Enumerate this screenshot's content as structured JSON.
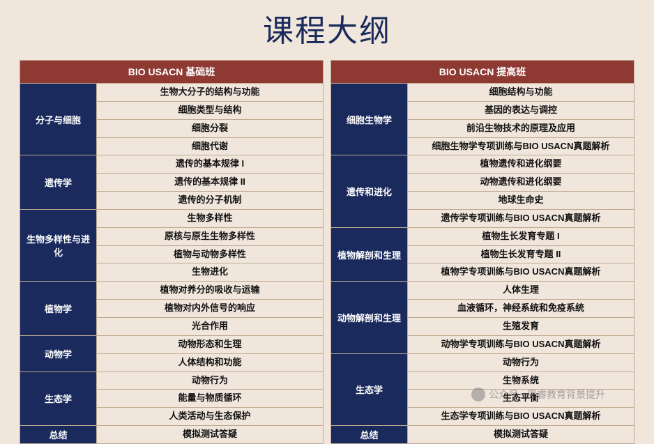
{
  "colors": {
    "page_bg": "#f0e6dc",
    "title_color": "#1a2a5c",
    "header_bg": "#8e3a33",
    "header_fg": "#ffffff",
    "category_bg": "#1a2a5c",
    "category_fg": "#ffffff",
    "cell_fg": "#111111",
    "border": "#bfa98f"
  },
  "title": "课程大纲",
  "left": {
    "header": "BIO USACN 基础班",
    "sections": [
      {
        "category": "分子与细胞",
        "topics": [
          "生物大分子的结构与功能",
          "细胞类型与结构",
          "细胞分裂",
          "细胞代谢"
        ]
      },
      {
        "category": "遗传学",
        "topics": [
          "遗传的基本规律 I",
          "遗传的基本规律 II",
          "遗传的分子机制"
        ]
      },
      {
        "category": "生物多样性与进化",
        "topics": [
          "生物多样性",
          "原核与原生生物多样性",
          "植物与动物多样性",
          "生物进化"
        ]
      },
      {
        "category": "植物学",
        "topics": [
          "植物对养分的吸收与运输",
          "植物对内外信号的响应",
          "光合作用"
        ]
      },
      {
        "category": "动物学",
        "topics": [
          "动物形态和生理",
          "人体结构和功能"
        ]
      },
      {
        "category": "生态学",
        "topics": [
          "动物行为",
          "能量与物质循环",
          "人类活动与生态保护"
        ]
      },
      {
        "category": "总结",
        "topics": [
          "模拟测试答疑"
        ]
      }
    ]
  },
  "right": {
    "header": "BIO USACN 提高班",
    "sections": [
      {
        "category": "细胞生物学",
        "topics": [
          "细胞结构与功能",
          "基因的表达与调控",
          "前沿生物技术的原理及应用",
          "细胞生物学专项训练与BIO USACN真题解析"
        ]
      },
      {
        "category": "遗传和进化",
        "topics": [
          "植物遗传和进化纲要",
          "动物遗传和进化纲要",
          "地球生命史",
          "遗传学专项训练与BIO USACN真题解析"
        ]
      },
      {
        "category": "植物解剖和生理",
        "topics": [
          "植物生长发育专题 I",
          "植物生长发育专题 II",
          "植物学专项训练与BIO USACN真题解析"
        ]
      },
      {
        "category": "动物解剖和生理",
        "topics": [
          "人体生理",
          "血液循环，神经系统和免疫系统",
          "生殖发育",
          "动物学专项训练与BIO USACN真题解析"
        ]
      },
      {
        "category": "生态学",
        "topics": [
          "动物行为",
          "生物系统",
          "生态平衡",
          "生态学专项训练与BIO USACN真题解析"
        ]
      },
      {
        "category": "总结",
        "topics": [
          "模拟测试答疑"
        ]
      }
    ]
  },
  "watermark": "公众号 · 思睿教育背景提升"
}
